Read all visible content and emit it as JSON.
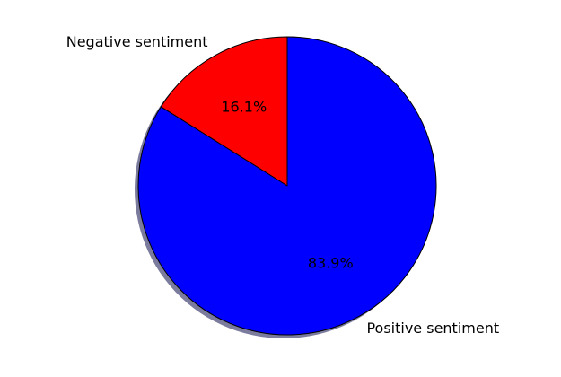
{
  "chart_data": {
    "type": "pie",
    "title": "",
    "categories": [
      "Negative sentiment",
      "Positive sentiment"
    ],
    "values": [
      16.1,
      83.9
    ],
    "percent_labels": [
      "16.1%",
      "83.9%"
    ],
    "colors": [
      "#ff0000",
      "#0000ff"
    ],
    "start_angle_deg": 90,
    "direction": "counterclockwise",
    "edge_color": "#000000",
    "shadow": true,
    "legend": "none"
  }
}
